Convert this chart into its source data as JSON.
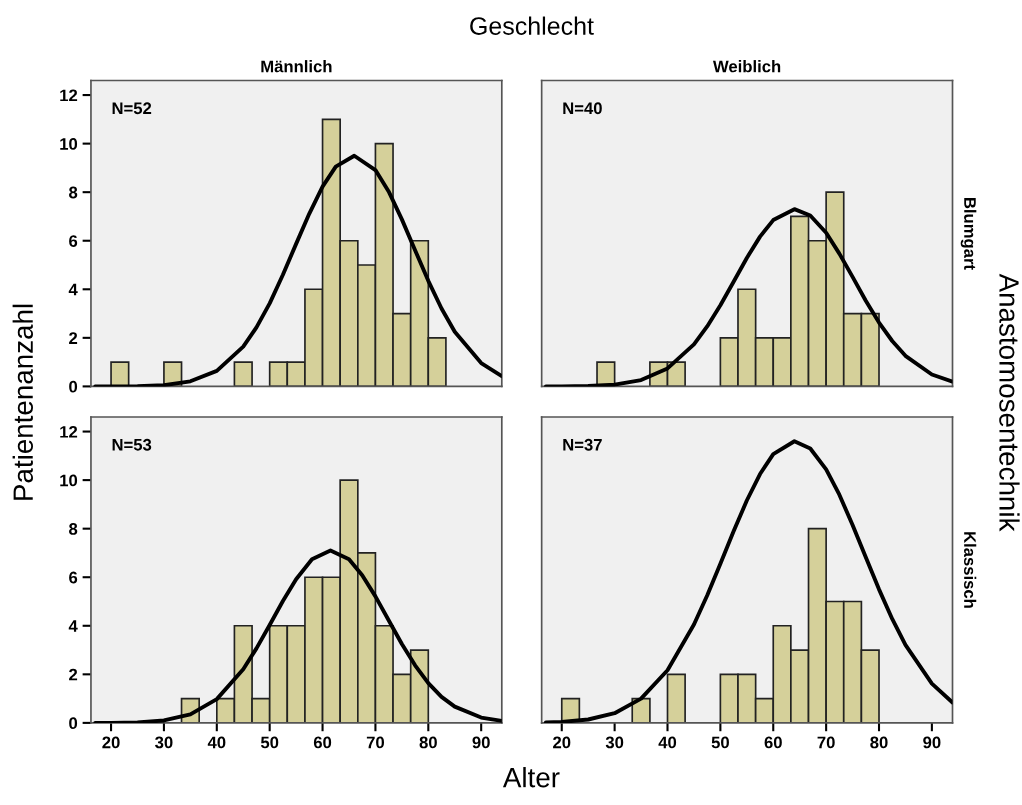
{
  "chart_data": [
    {
      "type": "histogram",
      "title": "Männlich",
      "subtitle": "Geschlecht",
      "ylabel": "Patientenanzahl",
      "annotations": [
        "N=52"
      ],
      "color": "#d5d09a",
      "bins": [
        20,
        23.33,
        26.67,
        30,
        33.33,
        36.67,
        40,
        43.33,
        46.67,
        50,
        53.33,
        56.67,
        60,
        63.33,
        66.67,
        70,
        73.33,
        76.67,
        80,
        83.33
      ],
      "values": [
        1,
        0,
        0,
        1,
        0,
        0,
        0,
        1,
        0,
        1,
        1,
        4,
        11,
        6,
        5,
        10,
        3,
        6,
        2
      ],
      "series": [
        {
          "type": "line",
          "color": "#000000",
          "x": [
            17,
            20,
            25,
            30,
            35,
            40,
            45,
            47.5,
            50,
            52.5,
            55,
            57.5,
            60,
            62.5,
            66,
            70,
            72.5,
            75,
            77.5,
            80,
            82.5,
            85,
            90,
            93.9
          ],
          "values": [
            0,
            0,
            0.01,
            0.05,
            0.21,
            0.64,
            1.64,
            2.43,
            3.42,
            4.6,
            5.87,
            7.12,
            8.23,
            9.05,
            9.5,
            8.91,
            8.03,
            6.88,
            5.61,
            4.35,
            3.21,
            2.25,
            0.96,
            0.42
          ]
        }
      ],
      "xlim": [
        16.2,
        93.9
      ],
      "ylim": [
        0,
        12.6
      ],
      "xticks": [
        20,
        30,
        40,
        50,
        60,
        70,
        80,
        90
      ],
      "yticks": [
        0,
        2,
        4,
        6,
        8,
        10,
        12
      ],
      "tick_labels": "y",
      "grid": false,
      "legend": false
    },
    {
      "type": "histogram",
      "title": "Weiblich",
      "y2label": "Blumgart",
      "annotations": [
        "N=40"
      ],
      "color": "#d5d09a",
      "bins": [
        20,
        23.33,
        26.67,
        30,
        33.33,
        36.67,
        40,
        43.33,
        46.67,
        50,
        53.33,
        56.67,
        60,
        63.33,
        66.67,
        70,
        73.33,
        76.67,
        80,
        83.33
      ],
      "values": [
        0,
        0,
        1,
        0,
        0,
        1,
        1,
        0,
        0,
        2,
        4,
        2,
        2,
        7,
        6,
        8,
        3,
        3,
        0
      ],
      "series": [
        {
          "type": "line",
          "color": "#000000",
          "x": [
            17,
            20,
            25,
            30,
            35,
            40,
            45,
            47.5,
            50,
            52.5,
            55,
            57.5,
            60,
            64,
            67,
            70,
            72.5,
            75,
            77.5,
            80,
            82.5,
            85,
            90,
            93.9
          ],
          "values": [
            0,
            0,
            0.02,
            0.07,
            0.26,
            0.74,
            1.73,
            2.47,
            3.34,
            4.31,
            5.29,
            6.17,
            6.85,
            7.3,
            7.04,
            6.33,
            5.47,
            4.51,
            3.53,
            2.63,
            1.87,
            1.26,
            0.49,
            0.2
          ]
        }
      ],
      "xlim": [
        16.2,
        93.9
      ],
      "ylim": [
        0,
        12.6
      ],
      "xticks": [
        20,
        30,
        40,
        50,
        60,
        70,
        80,
        90
      ],
      "yticks": [
        0,
        2,
        4,
        6,
        8,
        10,
        12
      ],
      "tick_labels": false,
      "grid": false,
      "legend": false
    },
    {
      "type": "histogram",
      "xlabel": "Alter",
      "annotations": [
        "N=53"
      ],
      "color": "#d5d09a",
      "bins": [
        20,
        23.33,
        26.67,
        30,
        33.33,
        36.67,
        40,
        43.33,
        46.67,
        50,
        53.33,
        56.67,
        60,
        63.33,
        66.67,
        70,
        73.33,
        76.67,
        80,
        83.33
      ],
      "values": [
        0,
        0,
        0,
        0,
        1,
        0,
        1,
        4,
        1,
        4,
        4,
        6,
        6,
        10,
        7,
        4,
        2,
        3,
        0
      ],
      "series": [
        {
          "type": "line",
          "color": "#000000",
          "x": [
            17,
            20,
            25,
            30,
            35,
            40,
            45,
            47.5,
            50,
            52.5,
            55,
            58,
            61.5,
            65,
            67.5,
            70,
            72.5,
            75,
            77.5,
            80,
            82.5,
            85,
            90,
            93.9
          ],
          "values": [
            0,
            0,
            0.02,
            0.1,
            0.35,
            0.98,
            2.21,
            3.07,
            4.03,
            5.02,
            5.92,
            6.74,
            7.1,
            6.74,
            6.08,
            5.21,
            4.23,
            3.25,
            2.37,
            1.64,
            1.07,
            0.67,
            0.22,
            0.08
          ]
        }
      ],
      "xlim": [
        16.2,
        93.9
      ],
      "ylim": [
        0,
        12.6
      ],
      "xticks": [
        20,
        30,
        40,
        50,
        60,
        70,
        80,
        90
      ],
      "yticks": [
        0,
        2,
        4,
        6,
        8,
        10,
        12
      ],
      "grid": false,
      "legend": false
    },
    {
      "type": "histogram",
      "y2label": "Klassisch",
      "annotations": [
        "N=37",
        "Anastomosentechnik"
      ],
      "color": "#d5d09a",
      "bins": [
        20,
        23.33,
        26.67,
        30,
        33.33,
        36.67,
        40,
        43.33,
        46.67,
        50,
        53.33,
        56.67,
        60,
        63.33,
        66.67,
        70,
        73.33,
        76.67,
        80,
        83.33
      ],
      "values": [
        1,
        0,
        0,
        0,
        1,
        0,
        2,
        0,
        0,
        2,
        2,
        1,
        4,
        3,
        8,
        5,
        5,
        3,
        0
      ],
      "series": [
        {
          "type": "line",
          "color": "#000000",
          "x": [
            17,
            20,
            25,
            30,
            35,
            40,
            45,
            47.5,
            50,
            52.5,
            55,
            57.5,
            60,
            64,
            67,
            70,
            72.5,
            75,
            77.5,
            80,
            82.5,
            85,
            90,
            93.9
          ],
          "values": [
            0.02,
            0.04,
            0.14,
            0.4,
            1,
            2.17,
            4.05,
            5.25,
            6.55,
            7.89,
            9.16,
            10.25,
            11.07,
            11.6,
            11.3,
            10.44,
            9.4,
            8.15,
            6.82,
            5.5,
            4.28,
            3.21,
            1.62,
            0.84
          ]
        }
      ],
      "xlim": [
        16.2,
        93.9
      ],
      "ylim": [
        0,
        12.6
      ],
      "xticks": [
        20,
        30,
        40,
        50,
        60,
        70,
        80,
        90
      ],
      "yticks": [
        0,
        2,
        4,
        6,
        8,
        10,
        12
      ],
      "tick_labels": "x",
      "grid": false,
      "legend": false
    }
  ]
}
